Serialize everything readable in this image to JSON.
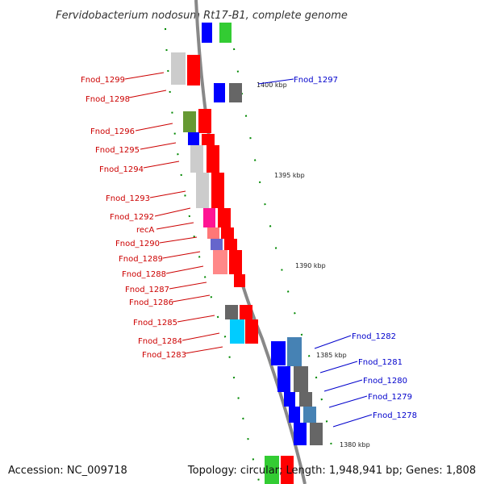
{
  "title": "Fervidobacterium nodosum Rt17-B1, complete genome",
  "footer": {
    "accession": "Accession: NC_009718",
    "topology": "Topology: circular; Length: 1,948,941 bp; Genes: 1,808"
  },
  "scale_labels": [
    "1400 kbp",
    "1395 kbp",
    "1390 kbp",
    "1385 kbp",
    "1380 kbp"
  ],
  "left_labels": [
    "Fnod_1299",
    "Fnod_1298",
    "Fnod_1296",
    "Fnod_1295",
    "Fnod_1294",
    "Fnod_1293",
    "Fnod_1292",
    "recA",
    "Fnod_1290",
    "Fnod_1289",
    "Fnod_1288",
    "Fnod_1287",
    "Fnod_1286",
    "Fnod_1285",
    "Fnod_1284",
    "Fnod_1283"
  ],
  "right_labels": [
    "Fnod_1297",
    "Fnod_1282",
    "Fnod_1281",
    "Fnod_1280",
    "Fnod_1279",
    "Fnod_1278"
  ],
  "colors": {
    "forward_strand": "#ff0000",
    "reverse_strand": "#0000ff",
    "left_label": "#cc0000",
    "right_label": "#0000cc",
    "scale_tick": "#008800",
    "backbone": "#888888"
  }
}
